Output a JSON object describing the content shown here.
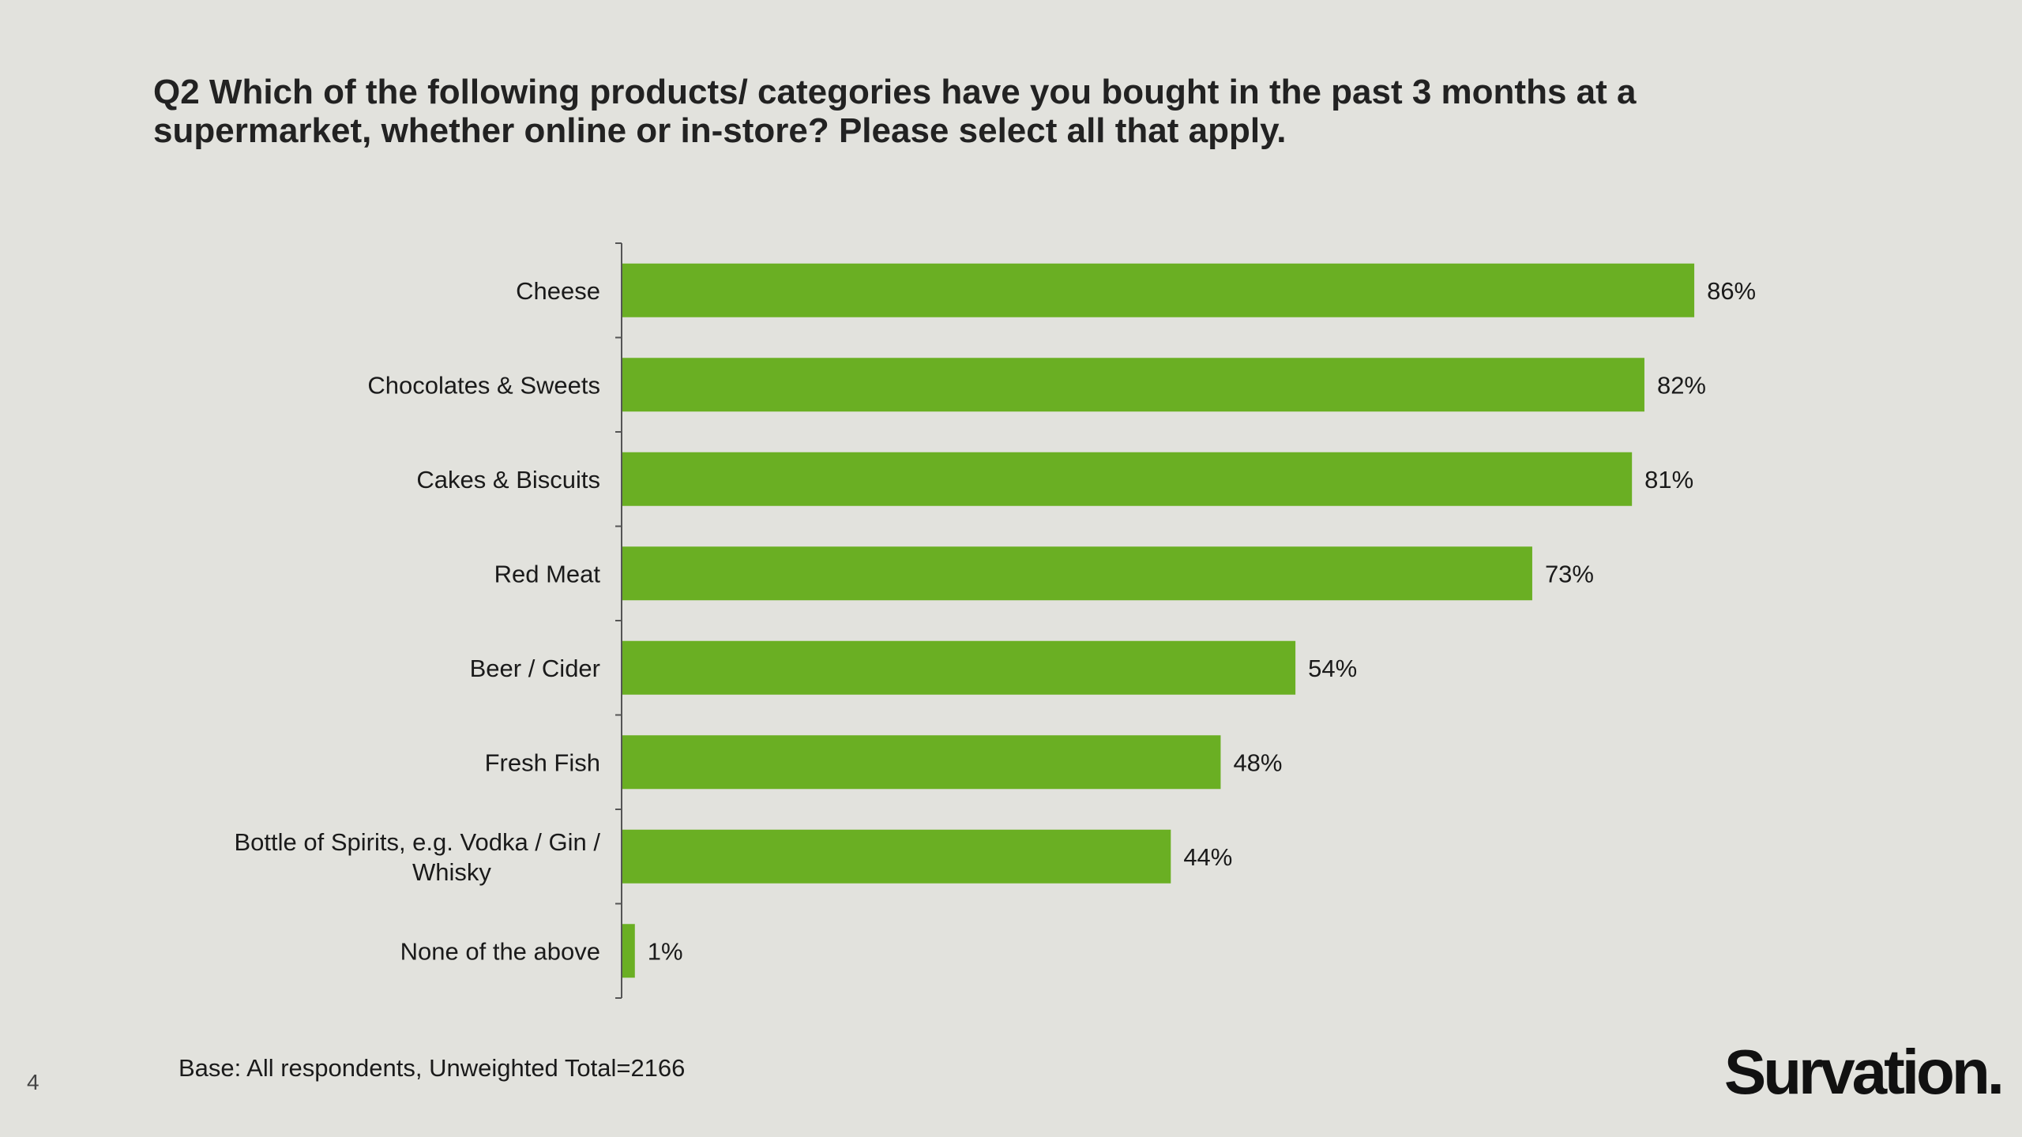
{
  "title": "Q2 Which of the following products/ categories have you bought in the past 3 months at a supermarket, whether online or in-store? Please select all that apply.",
  "footnote": "Base: All respondents, Unweighted Total=2166",
  "page_number": "4",
  "logo_text": "Survation.",
  "colors": {
    "bar": "#6aaf23",
    "background": "#e2e2dd",
    "axis": "#555555"
  },
  "chart_data": {
    "type": "bar",
    "orientation": "horizontal",
    "categories": [
      [
        "Cheese"
      ],
      [
        "Chocolates & Sweets"
      ],
      [
        "Cakes & Biscuits"
      ],
      [
        "Red Meat"
      ],
      [
        "Beer / Cider"
      ],
      [
        "Fresh Fish"
      ],
      [
        "Bottle of Spirits, e.g. Vodka / Gin /",
        "Whisky"
      ],
      [
        "None of the above"
      ]
    ],
    "values": [
      86,
      82,
      81,
      73,
      54,
      48,
      44,
      1
    ],
    "data_labels": [
      "86%",
      "82%",
      "81%",
      "73%",
      "54%",
      "48%",
      "44%",
      "1%"
    ],
    "xlim": [
      0,
      100
    ],
    "grid": false,
    "legend": "none"
  }
}
